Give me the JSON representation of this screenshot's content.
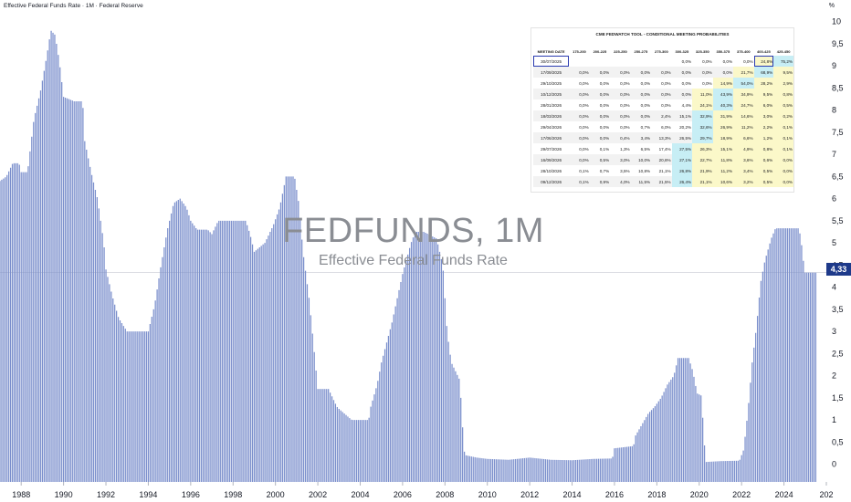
{
  "header": {
    "title": "Effective Federal Funds Rate · 1M · Federal Reserve",
    "y_unit": "%"
  },
  "watermark": {
    "symbol": "FEDFUNDS, 1M",
    "name": "Effective Federal Funds Rate"
  },
  "last_value": "4,33",
  "colors": {
    "bar": "#7b8fcc",
    "price_tag": "#1e3a8a",
    "yellow_cell": "#fbf8c9",
    "blue_cell": "#c7eef5",
    "highlight": "#2b3bb0"
  },
  "chart_data": {
    "type": "bar",
    "title": "Effective Federal Funds Rate",
    "symbol": "FEDFUNDS, 1M",
    "x_range": [
      1987.0,
      2026.0
    ],
    "ylim": [
      -0.4,
      10.2
    ],
    "y_ticks": [
      "0",
      "0,5",
      "1",
      "1,5",
      "2",
      "2,5",
      "3",
      "3,5",
      "4",
      "4,5",
      "5",
      "5,5",
      "6",
      "6,5",
      "7",
      "7,5",
      "8",
      "8,5",
      "9",
      "9,5",
      "10"
    ],
    "x_ticks": [
      "1988",
      "1990",
      "1992",
      "1994",
      "1996",
      "1998",
      "2000",
      "2002",
      "2004",
      "2006",
      "2008",
      "2010",
      "2012",
      "2014",
      "2016",
      "2018",
      "2020",
      "2022",
      "2024",
      "202"
    ],
    "last_value": 4.33,
    "series": [
      {
        "points": [
          [
            1987.0,
            6.4
          ],
          [
            1987.3,
            6.5
          ],
          [
            1987.6,
            6.8
          ],
          [
            1987.9,
            6.8
          ],
          [
            1988.0,
            6.6
          ],
          [
            1988.3,
            6.6
          ],
          [
            1988.6,
            7.8
          ],
          [
            1988.9,
            8.4
          ],
          [
            1989.2,
            9.2
          ],
          [
            1989.4,
            9.8
          ],
          [
            1989.6,
            9.7
          ],
          [
            1989.8,
            9.1
          ],
          [
            1990.0,
            8.3
          ],
          [
            1990.5,
            8.2
          ],
          [
            1990.9,
            8.2
          ],
          [
            1991.0,
            7.3
          ],
          [
            1991.3,
            6.6
          ],
          [
            1991.6,
            6.0
          ],
          [
            1991.9,
            5.0
          ],
          [
            1992.0,
            4.4
          ],
          [
            1992.3,
            3.8
          ],
          [
            1992.6,
            3.3
          ],
          [
            1993.0,
            3.0
          ],
          [
            1993.5,
            3.0
          ],
          [
            1994.0,
            3.0
          ],
          [
            1994.3,
            3.6
          ],
          [
            1994.6,
            4.5
          ],
          [
            1994.9,
            5.3
          ],
          [
            1995.2,
            5.9
          ],
          [
            1995.5,
            6.0
          ],
          [
            1995.8,
            5.8
          ],
          [
            1996.0,
            5.5
          ],
          [
            1996.3,
            5.3
          ],
          [
            1996.8,
            5.3
          ],
          [
            1997.0,
            5.2
          ],
          [
            1997.3,
            5.5
          ],
          [
            1997.8,
            5.5
          ],
          [
            1998.0,
            5.5
          ],
          [
            1998.6,
            5.5
          ],
          [
            1998.8,
            5.2
          ],
          [
            1999.0,
            4.8
          ],
          [
            1999.5,
            5.0
          ],
          [
            1999.9,
            5.4
          ],
          [
            2000.2,
            5.8
          ],
          [
            2000.5,
            6.5
          ],
          [
            2000.9,
            6.5
          ],
          [
            2001.1,
            5.9
          ],
          [
            2001.3,
            4.8
          ],
          [
            2001.6,
            3.7
          ],
          [
            2001.9,
            2.2
          ],
          [
            2002.0,
            1.7
          ],
          [
            2002.5,
            1.7
          ],
          [
            2002.9,
            1.3
          ],
          [
            2003.0,
            1.25
          ],
          [
            2003.6,
            1.0
          ],
          [
            2004.0,
            1.0
          ],
          [
            2004.4,
            1.0
          ],
          [
            2004.5,
            1.3
          ],
          [
            2004.8,
            1.8
          ],
          [
            2005.0,
            2.3
          ],
          [
            2005.5,
            3.2
          ],
          [
            2006.0,
            4.3
          ],
          [
            2006.4,
            5.0
          ],
          [
            2006.6,
            5.25
          ],
          [
            2007.0,
            5.25
          ],
          [
            2007.6,
            5.1
          ],
          [
            2007.9,
            4.5
          ],
          [
            2008.1,
            3.0
          ],
          [
            2008.3,
            2.3
          ],
          [
            2008.7,
            1.9
          ],
          [
            2008.9,
            0.3
          ],
          [
            2009.0,
            0.2
          ],
          [
            2009.5,
            0.15
          ],
          [
            2010.0,
            0.12
          ],
          [
            2011.0,
            0.1
          ],
          [
            2012.0,
            0.15
          ],
          [
            2013.0,
            0.1
          ],
          [
            2014.0,
            0.09
          ],
          [
            2015.0,
            0.12
          ],
          [
            2015.9,
            0.13
          ],
          [
            2016.0,
            0.36
          ],
          [
            2016.9,
            0.41
          ],
          [
            2017.0,
            0.65
          ],
          [
            2017.3,
            0.9
          ],
          [
            2017.6,
            1.15
          ],
          [
            2017.9,
            1.3
          ],
          [
            2018.2,
            1.5
          ],
          [
            2018.5,
            1.8
          ],
          [
            2018.8,
            2.0
          ],
          [
            2019.0,
            2.4
          ],
          [
            2019.5,
            2.4
          ],
          [
            2019.7,
            2.1
          ],
          [
            2019.9,
            1.6
          ],
          [
            2020.1,
            1.55
          ],
          [
            2020.3,
            0.05
          ],
          [
            2021.0,
            0.07
          ],
          [
            2021.9,
            0.08
          ],
          [
            2022.1,
            0.33
          ],
          [
            2022.3,
            1.2
          ],
          [
            2022.5,
            2.3
          ],
          [
            2022.7,
            3.1
          ],
          [
            2022.9,
            4.1
          ],
          [
            2023.1,
            4.6
          ],
          [
            2023.4,
            5.1
          ],
          [
            2023.6,
            5.33
          ],
          [
            2024.7,
            5.33
          ],
          [
            2024.8,
            5.1
          ],
          [
            2024.9,
            4.65
          ],
          [
            2025.0,
            4.33
          ],
          [
            2025.5,
            4.33
          ]
        ]
      }
    ],
    "table": {
      "title": "CME FEDWATCH TOOL - CONDITIONAL MEETING PROBABILITIES",
      "columns": [
        "MEETING DATE",
        "175-200",
        "200-225",
        "225-250",
        "250-275",
        "275-300",
        "300-325",
        "325-350",
        "350-375",
        "375-400",
        "400-425",
        "425-450"
      ],
      "rows": [
        [
          "30/07/2025",
          "",
          "",
          "",
          "",
          "",
          "0,0%",
          "0,0%",
          "0,0%",
          "0,0%",
          "24,8%",
          "75,2%"
        ],
        [
          "17/09/2025",
          "0,0%",
          "0,0%",
          "0,0%",
          "0,0%",
          "0,0%",
          "0,0%",
          "0,0%",
          "0,0%",
          "21,7%",
          "68,9%",
          "9,5%"
        ],
        [
          "29/10/2025",
          "0,0%",
          "0,0%",
          "0,0%",
          "0,0%",
          "0,0%",
          "0,0%",
          "0,0%",
          "14,9%",
          "54,0%",
          "28,2%",
          "2,9%"
        ],
        [
          "10/12/2025",
          "0,0%",
          "0,0%",
          "0,0%",
          "0,0%",
          "0,0%",
          "0,0%",
          "11,0%",
          "43,9%",
          "34,9%",
          "9,5%",
          "0,8%"
        ],
        [
          "28/01/2026",
          "0,0%",
          "0,0%",
          "0,0%",
          "0,0%",
          "0,0%",
          "4,4%",
          "24,1%",
          "40,3%",
          "24,7%",
          "6,0%",
          "0,5%"
        ],
        [
          "18/03/2026",
          "0,0%",
          "0,0%",
          "0,0%",
          "0,0%",
          "2,4%",
          "15,1%",
          "32,9%",
          "31,9%",
          "14,6%",
          "3,0%",
          "0,2%"
        ],
        [
          "29/04/2026",
          "0,0%",
          "0,0%",
          "0,0%",
          "0,7%",
          "6,0%",
          "20,2%",
          "32,6%",
          "26,9%",
          "11,2%",
          "2,2%",
          "0,1%"
        ],
        [
          "17/06/2026",
          "0,0%",
          "0,0%",
          "0,4%",
          "3,4%",
          "13,3%",
          "26,5%",
          "29,7%",
          "18,9%",
          "6,6%",
          "1,2%",
          "0,1%"
        ],
        [
          "29/07/2026",
          "0,0%",
          "0,1%",
          "1,3%",
          "6,5%",
          "17,4%",
          "27,5%",
          "26,3%",
          "15,1%",
          "4,9%",
          "0,8%",
          "0,1%"
        ],
        [
          "16/09/2026",
          "0,0%",
          "0,5%",
          "3,0%",
          "10,0%",
          "20,6%",
          "27,1%",
          "22,7%",
          "11,8%",
          "3,6%",
          "0,6%",
          "0,0%"
        ],
        [
          "28/10/2026",
          "0,1%",
          "0,7%",
          "3,5%",
          "10,8%",
          "21,1%",
          "26,8%",
          "21,9%",
          "11,2%",
          "3,4%",
          "0,5%",
          "0,0%"
        ],
        [
          "09/12/2026",
          "0,1%",
          "0,9%",
          "4,0%",
          "11,5%",
          "21,5%",
          "26,4%",
          "21,1%",
          "10,6%",
          "3,2%",
          "0,5%",
          "0,0%"
        ]
      ],
      "blue_cells": [
        [
          0,
          11
        ],
        [
          1,
          10
        ],
        [
          2,
          9
        ],
        [
          3,
          8
        ],
        [
          4,
          8
        ],
        [
          5,
          7
        ],
        [
          6,
          7
        ],
        [
          7,
          7
        ],
        [
          8,
          6
        ],
        [
          9,
          6
        ],
        [
          10,
          6
        ],
        [
          11,
          6
        ]
      ],
      "yellow_cells": [
        [
          0,
          10
        ],
        [
          1,
          9
        ],
        [
          1,
          11
        ],
        [
          2,
          8
        ],
        [
          2,
          10
        ],
        [
          2,
          11
        ],
        [
          3,
          7
        ],
        [
          3,
          9
        ],
        [
          3,
          10
        ],
        [
          3,
          11
        ],
        [
          4,
          7
        ],
        [
          4,
          9
        ],
        [
          4,
          10
        ],
        [
          4,
          11
        ],
        [
          5,
          8
        ],
        [
          5,
          9
        ],
        [
          5,
          10
        ],
        [
          5,
          11
        ],
        [
          6,
          8
        ],
        [
          6,
          9
        ],
        [
          6,
          10
        ],
        [
          6,
          11
        ],
        [
          7,
          8
        ],
        [
          7,
          9
        ],
        [
          7,
          10
        ],
        [
          7,
          11
        ],
        [
          8,
          7
        ],
        [
          8,
          8
        ],
        [
          8,
          9
        ],
        [
          8,
          10
        ],
        [
          8,
          11
        ],
        [
          9,
          7
        ],
        [
          9,
          8
        ],
        [
          9,
          9
        ],
        [
          9,
          10
        ],
        [
          9,
          11
        ],
        [
          10,
          7
        ],
        [
          10,
          8
        ],
        [
          10,
          9
        ],
        [
          10,
          10
        ],
        [
          10,
          11
        ],
        [
          11,
          7
        ],
        [
          11,
          8
        ],
        [
          11,
          9
        ],
        [
          11,
          10
        ],
        [
          11,
          11
        ]
      ],
      "highlight_cells": [
        [
          0,
          0
        ],
        [
          0,
          10
        ]
      ]
    }
  }
}
